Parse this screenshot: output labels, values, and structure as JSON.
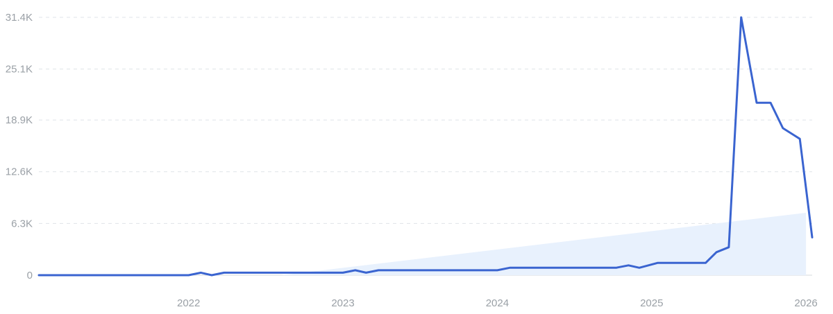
{
  "chart_data": {
    "type": "line",
    "title": "",
    "xlabel": "",
    "ylabel": "",
    "colors": {
      "line": "#3a64d0",
      "trend_fill": "#e8f1fd",
      "tick_text": "#9aa0a6",
      "grid": "#dfe3e8"
    },
    "grid": true,
    "legend": "none",
    "xlim": [
      2021.03,
      2026.04
    ],
    "ylim": [
      0,
      31400
    ],
    "x_ticks": [
      {
        "value": 2022,
        "label": "2022"
      },
      {
        "value": 2023,
        "label": "2023"
      },
      {
        "value": 2024,
        "label": "2024"
      },
      {
        "value": 2025,
        "label": "2025"
      },
      {
        "value": 2026,
        "label": "2026"
      }
    ],
    "y_ticks": [
      {
        "value": 0,
        "label": "0"
      },
      {
        "value": 6300,
        "label": "6.3K"
      },
      {
        "value": 12600,
        "label": "12.6K"
      },
      {
        "value": 18900,
        "label": "18.9K"
      },
      {
        "value": 25100,
        "label": "25.1K"
      },
      {
        "value": 31400,
        "label": "31.4K"
      }
    ],
    "trend": {
      "x": [
        2022.6,
        2026.0
      ],
      "y": [
        0,
        7600
      ]
    },
    "series": [
      {
        "x": [
          2021.03,
          2021.5,
          2022.0,
          2022.08,
          2022.15,
          2022.23,
          2022.5,
          2022.77,
          2023.0,
          2023.08,
          2023.15,
          2023.23,
          2023.5,
          2023.77,
          2024.0,
          2024.08,
          2024.5,
          2024.77,
          2024.85,
          2024.92,
          2025.0,
          2025.04,
          2025.12,
          2025.35,
          2025.42,
          2025.5,
          2025.58,
          2025.68,
          2025.77,
          2025.85,
          2025.96,
          2026.04
        ],
        "y": [
          0,
          0,
          0,
          300,
          0,
          300,
          300,
          300,
          300,
          600,
          300,
          600,
          600,
          600,
          600,
          900,
          900,
          900,
          1200,
          900,
          1300,
          1500,
          1500,
          1500,
          2800,
          3400,
          31400,
          21000,
          21000,
          17900,
          16600,
          4600
        ]
      }
    ]
  }
}
